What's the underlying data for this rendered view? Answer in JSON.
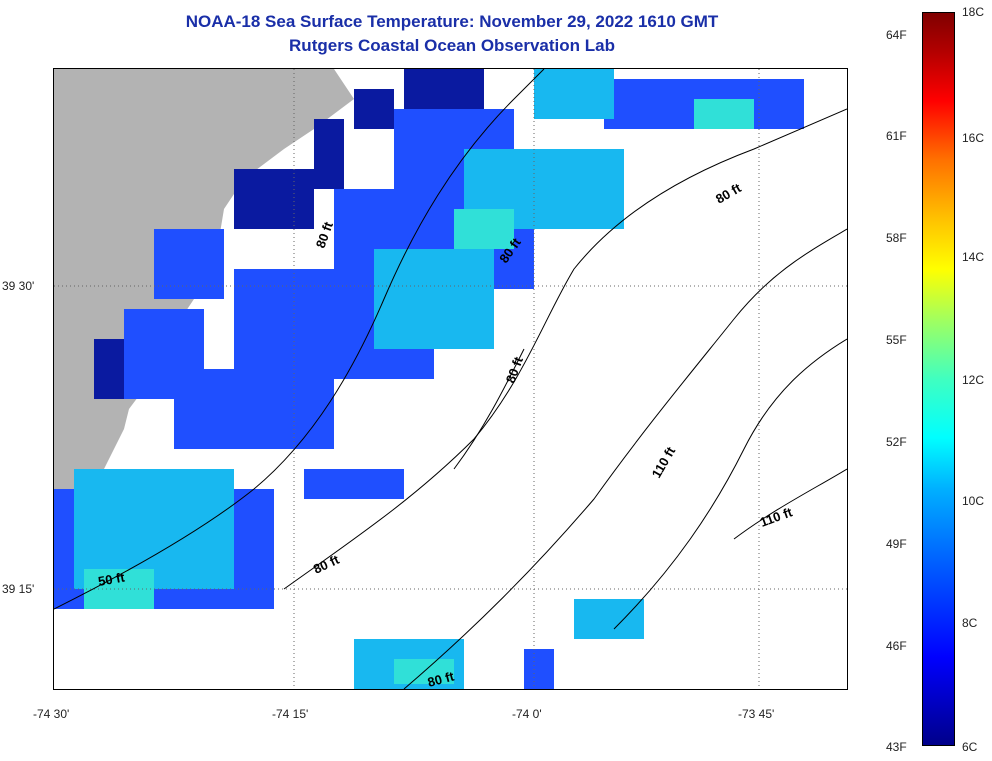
{
  "title": {
    "line1": "NOAA-18 Sea Surface Temperature:  November 29, 2022 1610 GMT",
    "line2": "Rutgers Coastal Ocean Observation Lab"
  },
  "map": {
    "lat_labels": [
      "39 30'",
      "39 15'"
    ],
    "lon_labels": [
      "-74 30'",
      "-74 15'",
      "-74 0'",
      "-73 45'"
    ],
    "contour_labels": [
      "80 ft",
      "80 ft",
      "80 ft",
      "80 ft",
      "110 ft",
      "110 ft",
      "50 ft",
      "80 ft",
      "80 ft"
    ]
  },
  "colorbar": {
    "fahrenheit": [
      "64F",
      "61F",
      "58F",
      "55F",
      "52F",
      "49F",
      "46F",
      "43F"
    ],
    "celsius": [
      "18C",
      "16C",
      "14C",
      "12C",
      "10C",
      "8C",
      "6C"
    ]
  },
  "colors": {
    "land": "#b3b3b3",
    "title": "#1a2fa8",
    "deep_blue": "#0a1aa0",
    "blue": "#1f4fff",
    "cyan": "#18b8f0",
    "aqua": "#30e0d8"
  }
}
